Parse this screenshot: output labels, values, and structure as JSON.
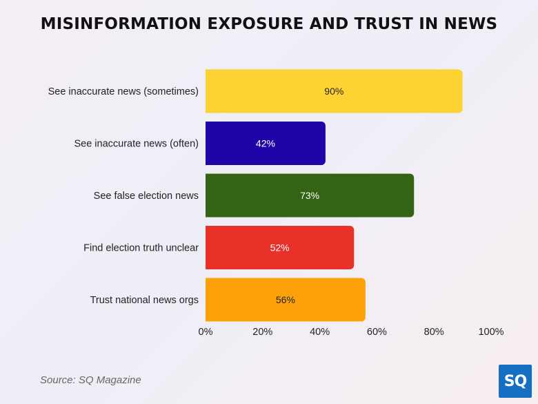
{
  "title": "MISINFORMATION EXPOSURE AND TRUST IN NEWS",
  "source": "Source: SQ Magazine",
  "logo_text": "SQ",
  "logo_color": "#1570c4",
  "chart_data": {
    "type": "bar",
    "orientation": "horizontal",
    "title": "MISINFORMATION EXPOSURE AND TRUST IN NEWS",
    "categories": [
      "See inaccurate news (sometimes)",
      "See inaccurate news (often)",
      "See false election news",
      "Find election truth unclear",
      "Trust national news orgs"
    ],
    "values": [
      90,
      42,
      73,
      52,
      56
    ],
    "value_labels": [
      "90%",
      "42%",
      "73%",
      "52%",
      "56%"
    ],
    "colors": [
      "#fdd334",
      "#1f05a8",
      "#346314",
      "#e9312a",
      "#fca10a"
    ],
    "label_colors": [
      "#222222",
      "#ffffff",
      "#ffffff",
      "#ffffff",
      "#222222"
    ],
    "xlim": [
      0,
      100
    ],
    "xticks": [
      "0%",
      "20%",
      "40%",
      "60%",
      "80%",
      "100%"
    ],
    "grid": false,
    "legend": "none"
  }
}
